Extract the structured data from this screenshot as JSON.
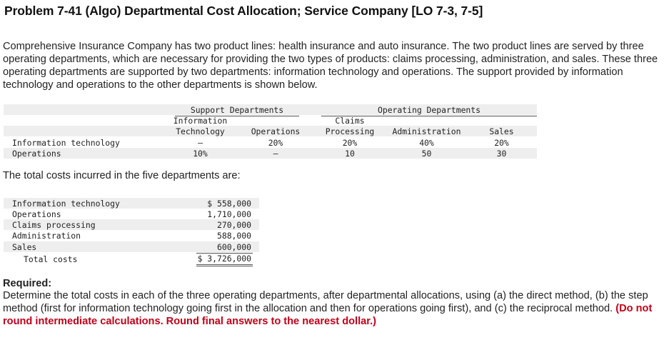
{
  "title": "Problem 7-41 (Algo) Departmental Cost Allocation; Service Company [LO 7-3, 7-5]",
  "intro": "Comprehensive Insurance Company has two product lines: health insurance and auto insurance. The two product lines are served by three operating departments, which are necessary for providing the two types of products: claims processing, administration, and sales. These three operating departments are supported by two departments: information technology and operations. The support provided by information technology and operations to the other departments is shown below.",
  "allocation_table": {
    "support_header": "Support Departments",
    "operating_header": "Operating Departments",
    "col_it_line1": "Information",
    "col_it_line2": "Technology",
    "col_ops": "Operations",
    "col_claims_line1": "Claims",
    "col_claims_line2": "Processing",
    "col_admin": "Administration",
    "col_sales": "Sales",
    "rows": [
      {
        "label": "Information technology",
        "it": "–",
        "ops": "20%",
        "claims": "20%",
        "admin": "40%",
        "sales": "20%"
      },
      {
        "label": "Operations",
        "it": "10%",
        "ops": "–",
        "claims": "10",
        "admin": "50",
        "sales": "30"
      }
    ]
  },
  "costs_intro": "The total costs incurred in the five departments are:",
  "costs_table": {
    "rows": [
      {
        "label": "Information technology",
        "value": "$ 558,000"
      },
      {
        "label": "Operations",
        "value": "1,710,000"
      },
      {
        "label": "Claims processing",
        "value": "270,000"
      },
      {
        "label": "Administration",
        "value": "588,000"
      },
      {
        "label": "Sales",
        "value": "600,000"
      }
    ],
    "total_label": "Total costs",
    "total_value": "$ 3,726,000"
  },
  "required_label": "Required:",
  "required_text": "Determine the total costs in each of the three operating departments, after departmental allocations, using (a) the direct method, (b) the step method (first for information technology going first in the allocation and then for operations going first), and (c) the reciprocal method.",
  "required_note": "(Do not round intermediate calculations. Round final answers to the nearest dollar.)"
}
